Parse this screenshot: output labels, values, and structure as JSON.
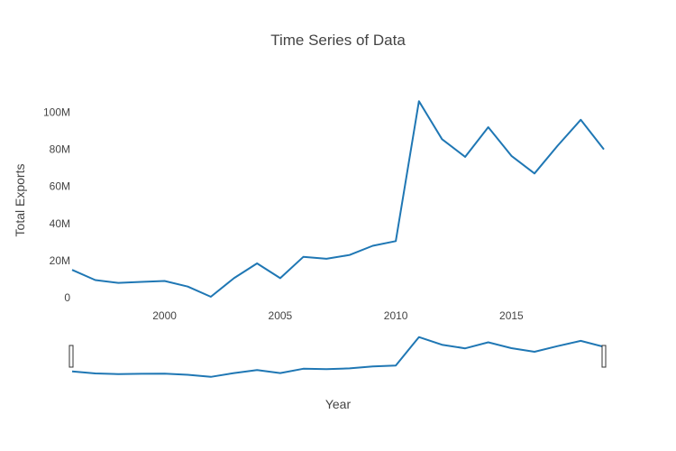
{
  "chart_data": {
    "type": "line",
    "title": "Time Series of Data",
    "xlabel": "Year",
    "ylabel": "Total Exports",
    "xlim": [
      1996,
      2019
    ],
    "ylim": [
      0,
      110000000
    ],
    "x_ticks": [
      2000,
      2005,
      2010,
      2015
    ],
    "x_tick_labels": [
      "2000",
      "2005",
      "2010",
      "2015"
    ],
    "y_ticks": [
      0,
      20000000,
      40000000,
      60000000,
      80000000,
      100000000
    ],
    "y_tick_labels": [
      "0",
      "20M",
      "40M",
      "60M",
      "80M",
      "100M"
    ],
    "grid": false,
    "range_slider": true,
    "series": [
      {
        "color": "#1f77b4",
        "x": [
          1996,
          1997,
          1998,
          1999,
          2000,
          2001,
          2002,
          2003,
          2004,
          2005,
          2006,
          2007,
          2008,
          2009,
          2010,
          2011,
          2012,
          2013,
          2014,
          2015,
          2016,
          2017,
          2018,
          2019
        ],
        "values": [
          15000000,
          9500000,
          8000000,
          8500000,
          9000000,
          6000000,
          500000,
          10500000,
          18500000,
          10500000,
          22000000,
          21000000,
          23000000,
          28000000,
          30500000,
          106000000,
          85500000,
          76000000,
          92000000,
          76500000,
          67000000,
          82000000,
          96000000,
          80000000
        ]
      }
    ]
  }
}
